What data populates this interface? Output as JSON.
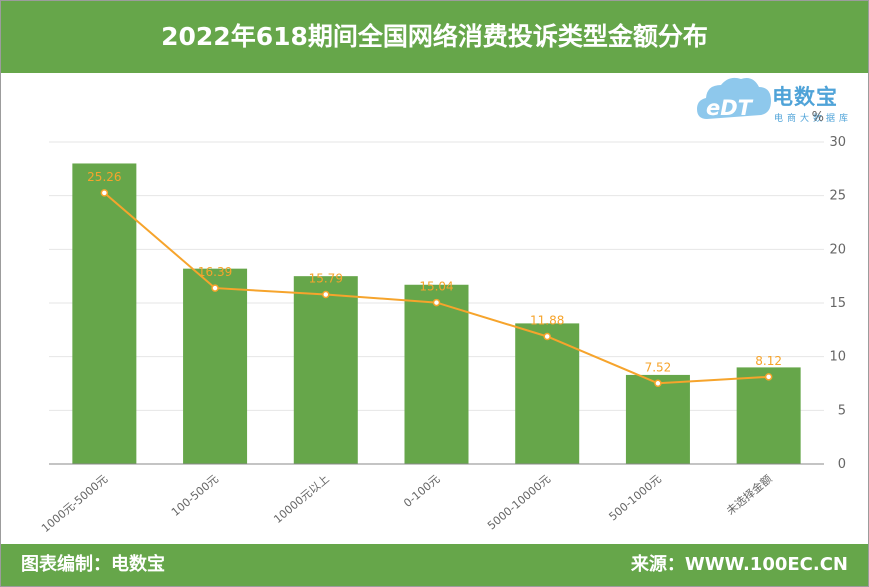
{
  "page": {
    "title": "2022年618期间全国网络消费投诉类型金额分布",
    "footer_left": "图表编制：电数宝",
    "footer_right": "来源：WWW.100EC.CN",
    "logo_name": "电数宝",
    "logo_sub": "电商大数据库",
    "logo_mark": "eDT"
  },
  "colors": {
    "header": "#66a64a",
    "bar": "#66a64a",
    "line": "#f6a42c",
    "logo": "#4fa3d8"
  },
  "chart_data": {
    "type": "bar",
    "categories": [
      "1000元-5000元",
      "100-500元",
      "10000元以上",
      "0-100元",
      "5000-10000元",
      "500-1000元",
      "未选择金额"
    ],
    "series": [
      {
        "type": "bar",
        "values": [
          28.0,
          18.2,
          17.5,
          16.7,
          13.1,
          8.3,
          9.0
        ]
      },
      {
        "type": "line",
        "values": [
          25.26,
          16.39,
          15.79,
          15.04,
          11.88,
          7.52,
          8.12
        ]
      }
    ],
    "data_labels": [
      "25.26",
      "16.39",
      "15.79",
      "15.04",
      "11.88",
      "7.52",
      "8.12"
    ],
    "unit": "%",
    "ylim": [
      0,
      30
    ],
    "yticks": [
      "0",
      "5",
      "10",
      "15",
      "20",
      "25",
      "30"
    ],
    "y_axis_side": "right",
    "grid": true
  }
}
